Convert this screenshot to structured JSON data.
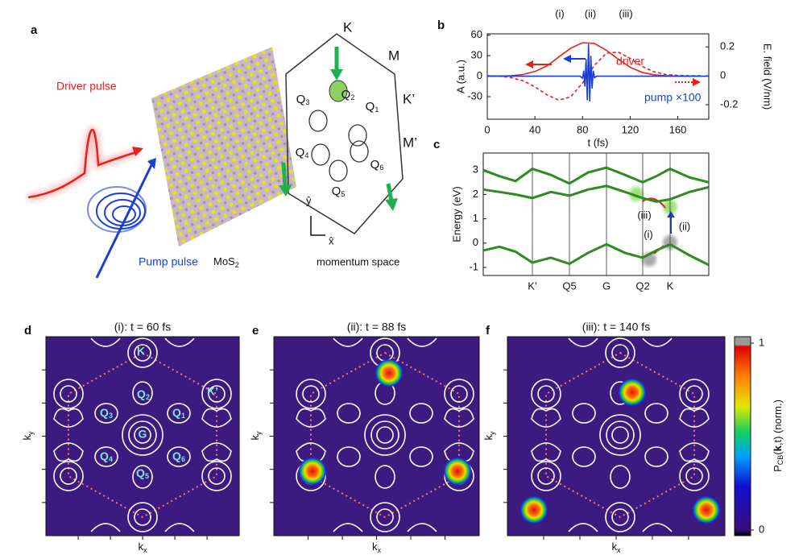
{
  "figure": {
    "a": {
      "label": "a",
      "driver": "Driver pulse",
      "pump": "Pump pulse",
      "material": {
        "base": "MoS",
        "sub": "2"
      },
      "space": "momentum space",
      "K": "K",
      "M": "M",
      "Kp": "K’",
      "Mp": "M’",
      "Q": [
        {
          "base": "Q",
          "sub": "1"
        },
        {
          "base": "Q",
          "sub": "2"
        },
        {
          "base": "Q",
          "sub": "3"
        },
        {
          "base": "Q",
          "sub": "4"
        },
        {
          "base": "Q",
          "sub": "5"
        },
        {
          "base": "Q",
          "sub": "6"
        }
      ],
      "y": "ŷ",
      "x": "x̂"
    },
    "d": {
      "label": "d",
      "title": "(i): t = 60 fs",
      "xlabel": {
        "base": "k",
        "sub": "x"
      },
      "ylabel": {
        "base": "k",
        "sub": "y"
      },
      "K": "K",
      "Kp": "K’",
      "G": "G",
      "Q": [
        {
          "base": "Q",
          "sub": "1"
        },
        {
          "base": "Q",
          "sub": "2"
        },
        {
          "base": "Q",
          "sub": "3"
        },
        {
          "base": "Q",
          "sub": "4"
        },
        {
          "base": "Q",
          "sub": "5"
        },
        {
          "base": "Q",
          "sub": "6"
        }
      ]
    },
    "e": {
      "label": "e",
      "title": "(ii): t = 88 fs",
      "xlabel": {
        "base": "k",
        "sub": "x"
      },
      "ylabel": {
        "base": "k",
        "sub": "y"
      }
    },
    "f": {
      "label": "f",
      "title": "(iii): t = 140 fs",
      "xlabel": {
        "base": "k",
        "sub": "x"
      },
      "ylabel": {
        "base": "k",
        "sub": "y"
      }
    },
    "colorbar": {
      "label": {
        "p": "P",
        "sub": "CB",
        "open": "(",
        "k": "k",
        "rest": ",t) (norm.)"
      },
      "ticks": [
        0,
        1
      ]
    }
  },
  "chart_data": [
    {
      "type": "line",
      "label": "b",
      "annotations": [
        "(i)",
        "(ii)",
        "(iii)"
      ],
      "xlabel": "t (fs)",
      "ylabel": "A (a.u.)",
      "y2label": "E. field (V/nm)",
      "xlim": [
        0,
        186
      ],
      "xticks": [
        0,
        40,
        80,
        120,
        160
      ],
      "ylim": [
        -63,
        62
      ],
      "yticks": [
        60,
        30,
        0,
        -30
      ],
      "y2lim": [
        -0.3,
        0.29
      ],
      "y2ticks": [
        0.2,
        0,
        -0.2
      ],
      "series": [
        {
          "name": "driver",
          "color": "#e8201c",
          "x": [
            0,
            10,
            20,
            30,
            40,
            50,
            60,
            70,
            80,
            90,
            100,
            110,
            120,
            130,
            140,
            150,
            160,
            170,
            180
          ],
          "values": [
            0,
            0.2,
            0.7,
            2.5,
            6.8,
            15,
            28,
            41,
            49,
            48,
            38,
            25,
            13,
            5.6,
            2,
            0.6,
            0.1,
            0,
            0
          ]
        },
        {
          "color": "#e8201c",
          "dash": true,
          "axis": "y2",
          "x": [
            0,
            10,
            20,
            30,
            40,
            50,
            60,
            70,
            80,
            90,
            100,
            110,
            120,
            130,
            140,
            150,
            160,
            170,
            180
          ],
          "values": [
            0,
            -0.003,
            -0.012,
            -0.034,
            -0.076,
            -0.131,
            -0.168,
            -0.146,
            -0.05,
            0.073,
            0.156,
            0.164,
            0.12,
            0.065,
            0.028,
            0.009,
            0.003,
            0,
            0
          ]
        },
        {
          "name": "pump ×100",
          "color": "#1a3fd8",
          "x": [
            0,
            78,
            80,
            81,
            82,
            83,
            84,
            85,
            86,
            87,
            88,
            89,
            90,
            92,
            186
          ],
          "values": [
            0,
            0,
            -3,
            8,
            -15,
            25,
            -35,
            47,
            -37,
            30,
            -18,
            8,
            -2,
            0,
            0
          ]
        }
      ]
    },
    {
      "type": "line",
      "label": "c",
      "annotations": [
        "(i)",
        "(ii)",
        "(iii)"
      ],
      "ylabel": "Energy (eV)",
      "xlim": [
        0,
        280
      ],
      "xticks": [
        {
          "value": 61,
          "label": "K’"
        },
        {
          "value": 107,
          "label": "Q5"
        },
        {
          "value": 153,
          "label": "G"
        },
        {
          "value": 198,
          "label": "Q2"
        },
        {
          "value": 232,
          "label": "K"
        }
      ],
      "ylim": [
        -1.33,
        3.7
      ],
      "yticks": [
        3,
        2,
        1,
        0,
        -1
      ],
      "x": [
        0,
        20,
        40,
        61,
        84,
        107,
        130,
        153,
        176,
        198,
        215,
        232,
        256,
        280
      ],
      "series": [
        {
          "color": "#2e8b22",
          "values": [
            -0.3,
            -0.15,
            -0.35,
            -0.8,
            -0.6,
            -0.85,
            -0.4,
            -0.05,
            -0.4,
            -0.6,
            -0.3,
            -0.05,
            -0.5,
            -0.9
          ]
        },
        {
          "color": "#2e8b22",
          "values": [
            2.2,
            2.1,
            2.0,
            1.85,
            2.1,
            1.95,
            2.2,
            2.35,
            2.1,
            1.85,
            1.7,
            1.8,
            2.1,
            2.3
          ]
        },
        {
          "color": "#2e8b22",
          "values": [
            3.0,
            2.75,
            2.55,
            3.05,
            2.8,
            2.45,
            2.9,
            3.1,
            2.8,
            2.5,
            2.75,
            3.05,
            2.7,
            2.5
          ]
        }
      ]
    }
  ]
}
